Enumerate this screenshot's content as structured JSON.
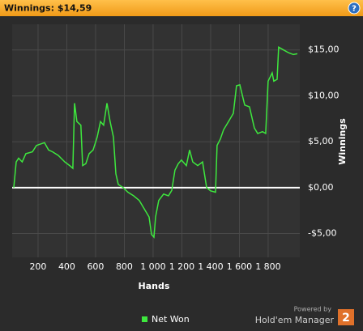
{
  "header": {
    "title": "Winnings: $14,59",
    "help": "?"
  },
  "chart_data": {
    "type": "line",
    "xlabel": "Hands",
    "ylabel": "Winnings",
    "grid": true,
    "xlim": [
      20,
      2020
    ],
    "ylim": [
      -7.6,
      17.8
    ],
    "xticks": [
      200,
      400,
      600,
      800,
      {
        "value": 1000,
        "label": "1 000"
      },
      {
        "value": 1200,
        "label": "1 200"
      },
      {
        "value": 1400,
        "label": "1 400"
      },
      {
        "value": 1600,
        "label": "1 600"
      },
      {
        "value": 1800,
        "label": "1 800"
      }
    ],
    "yticks": [
      {
        "value": -5,
        "label": "-$5,00"
      },
      {
        "value": 0,
        "label": "$0,00"
      },
      {
        "value": 5,
        "label": "$5,00"
      },
      {
        "value": 10,
        "label": "$10,00"
      },
      {
        "value": 15,
        "label": "$15,00"
      }
    ],
    "series": [
      {
        "name": "Net Won",
        "color": "#3ee83e",
        "x": [
          31,
          48,
          65,
          90,
          115,
          161,
          189,
          245,
          273,
          301,
          341,
          386,
          420,
          442,
          454,
          470,
          498,
          510,
          532,
          555,
          583,
          611,
          634,
          656,
          679,
          701,
          724,
          741,
          758,
          792,
          825,
          865,
          904,
          938,
          972,
          989,
          1006,
          1017,
          1039,
          1073,
          1107,
          1130,
          1152,
          1175,
          1197,
          1231,
          1254,
          1276,
          1310,
          1344,
          1372,
          1400,
          1434,
          1445,
          1468,
          1490,
          1524,
          1558,
          1580,
          1603,
          1637,
          1670,
          1704,
          1727,
          1761,
          1783,
          1800,
          1828,
          1839,
          1862,
          1873,
          1907,
          1941,
          1975,
          2003
        ],
        "values": [
          0,
          2.8,
          3.2,
          2.8,
          3.7,
          3.9,
          4.6,
          4.9,
          4.1,
          3.9,
          3.5,
          2.8,
          2.4,
          2.1,
          9.2,
          7.2,
          6.8,
          2.4,
          2.6,
          3.7,
          4.1,
          5.5,
          7.2,
          6.8,
          9.2,
          7.2,
          5.5,
          1.5,
          0.35,
          0,
          -0.5,
          -0.9,
          -1.4,
          -2.3,
          -3.2,
          -5.1,
          -5.4,
          -3.2,
          -1.4,
          -0.7,
          -0.9,
          -0.3,
          1.9,
          2.6,
          3.0,
          2.4,
          4.1,
          2.8,
          2.4,
          2.8,
          0,
          -0.35,
          -0.5,
          4.6,
          5.3,
          6.3,
          7.2,
          8.1,
          11.1,
          11.2,
          9.0,
          8.8,
          6.5,
          5.9,
          6.1,
          5.9,
          11.6,
          12.5,
          11.6,
          11.8,
          15.3,
          15.0,
          14.7,
          14.5,
          14.59
        ]
      }
    ]
  },
  "footer": {
    "powered_by": "Powered by",
    "brand": "Hold'em Manager",
    "brand_number": "2"
  }
}
